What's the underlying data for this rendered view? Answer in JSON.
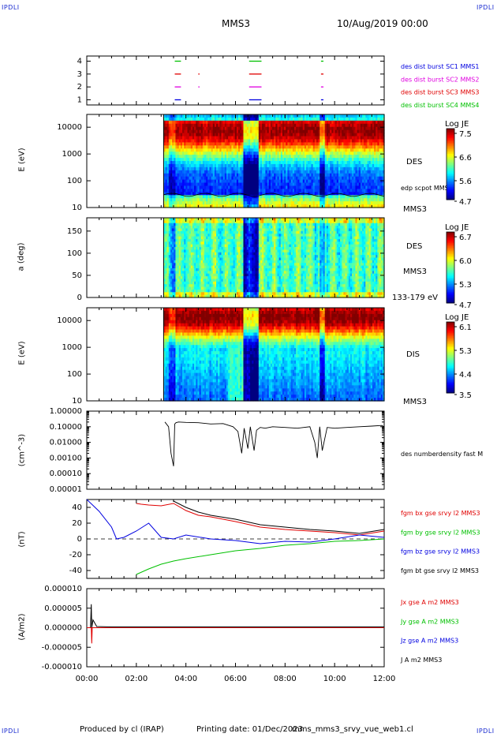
{
  "header": {
    "corner_tl": "IPDLI",
    "corner_tr": "IPDLI",
    "corner_bl": "IPDLI",
    "corner_br": "IPDLI",
    "spacecraft": "MMS3",
    "date": "10/Aug/2019 00:00"
  },
  "footer": {
    "produced_by": "Produced by cl (IRAP)",
    "printing_date": "Printing date: 01/Dec/2023",
    "filename": "mms_mms3_srvy_vue_web1.cl"
  },
  "colors": {
    "black": "#000000",
    "red": "#e00000",
    "green": "#00dd00",
    "blue": "#0000e0",
    "magenta": "#e000e0",
    "corner_blue": "#1a2bd0"
  },
  "chart_data": [
    {
      "type": "scatter",
      "panel": "burst",
      "ylim": [
        0.6,
        4.4
      ],
      "ytick_labels": [
        "1",
        "2",
        "3",
        "4"
      ],
      "legend": [
        {
          "label": "des dist burst SC1 MMS1",
          "color": "#0000e0"
        },
        {
          "label": "des dist burst SC2 MMS2",
          "color": "#e000e0"
        },
        {
          "label": "des dist burst SC3 MMS3",
          "color": "#e00000"
        },
        {
          "label": "des dist burst SC4 MMS4",
          "color": "#00c000"
        }
      ],
      "series": [
        {
          "level": 1,
          "color": "#0000e0",
          "intervals": [
            [
              3.55,
              3.8
            ],
            [
              6.55,
              7.05
            ],
            [
              9.45,
              9.55
            ]
          ]
        },
        {
          "level": 2,
          "color": "#e000e0",
          "intervals": [
            [
              3.55,
              3.8
            ],
            [
              4.5,
              4.55
            ],
            [
              6.55,
              7.05
            ],
            [
              9.45,
              9.55
            ]
          ]
        },
        {
          "level": 3,
          "color": "#e00000",
          "intervals": [
            [
              3.55,
              3.8
            ],
            [
              4.5,
              4.55
            ],
            [
              6.55,
              7.05
            ],
            [
              9.45,
              9.55
            ]
          ]
        },
        {
          "level": 4,
          "color": "#00c000",
          "intervals": [
            [
              3.55,
              3.8
            ],
            [
              6.55,
              7.05
            ],
            [
              9.45,
              9.55
            ]
          ]
        }
      ]
    },
    {
      "type": "heatmap",
      "panel": "des-energy",
      "ylabel": "E (eV)",
      "yscale": "log",
      "ylim": [
        10,
        30000
      ],
      "ytick_labels": [
        "10000",
        "1000",
        "100",
        "10"
      ],
      "right_labels": [
        "DES",
        "edp scpot MMS3",
        "MMS3"
      ],
      "colorbar": {
        "title": "Log JE",
        "ticks": [
          "7.5",
          "6.6",
          "5.6",
          "4.7"
        ],
        "range": [
          4.7,
          7.5
        ]
      },
      "data_start_hours": 3.1
    },
    {
      "type": "heatmap",
      "panel": "des-pitch",
      "ylabel": "a (deg)",
      "ylim": [
        0,
        180
      ],
      "ytick_labels": [
        "150",
        "100",
        "50",
        "0"
      ],
      "right_labels": [
        "DES",
        "MMS3",
        "133-179 eV"
      ],
      "colorbar": {
        "title": "Log JE",
        "ticks": [
          "6.7",
          "6.0",
          "5.3",
          "4.7"
        ],
        "range": [
          4.7,
          6.7
        ]
      },
      "data_start_hours": 3.1
    },
    {
      "type": "heatmap",
      "panel": "dis-energy",
      "ylabel": "E (eV)",
      "yscale": "log",
      "ylim": [
        10,
        30000
      ],
      "ytick_labels": [
        "10000",
        "1000",
        "100",
        "10"
      ],
      "right_labels": [
        "DIS",
        "MMS3"
      ],
      "colorbar": {
        "title": "Log JE",
        "ticks": [
          "6.1",
          "5.3",
          "4.4",
          "3.5"
        ],
        "range": [
          3.5,
          6.1
        ]
      },
      "data_start_hours": 3.1
    },
    {
      "type": "line",
      "panel": "density",
      "ylabel": "(cm^-3)",
      "yscale": "log",
      "ylim": [
        1e-05,
        1.0
      ],
      "ytick_labels": [
        "1.00000",
        "0.10000",
        "0.01000",
        "0.00100",
        "0.00010",
        "0.00001"
      ],
      "legend": [
        {
          "label": "des numberdensity fast M",
          "color": "#000000"
        }
      ],
      "x": [
        3.15,
        3.3,
        3.4,
        3.5,
        3.55,
        3.6,
        3.7,
        4.0,
        4.5,
        5.0,
        5.5,
        5.9,
        6.1,
        6.25,
        6.35,
        6.5,
        6.6,
        6.75,
        6.85,
        7.0,
        7.2,
        7.5,
        8.0,
        8.5,
        9.0,
        9.2,
        9.3,
        9.4,
        9.5,
        9.7,
        10.0,
        10.5,
        11.0,
        11.5,
        11.9,
        12.0
      ],
      "y": [
        0.2,
        0.1,
        0.002,
        0.0003,
        0.15,
        0.18,
        0.2,
        0.19,
        0.18,
        0.15,
        0.16,
        0.1,
        0.05,
        0.002,
        0.08,
        0.004,
        0.1,
        0.003,
        0.06,
        0.09,
        0.08,
        0.1,
        0.09,
        0.08,
        0.1,
        0.01,
        0.001,
        0.1,
        0.003,
        0.09,
        0.08,
        0.09,
        0.1,
        0.11,
        0.12,
        0.1
      ]
    },
    {
      "type": "line",
      "panel": "magnetic-field",
      "ylabel": "(nT)",
      "ylim": [
        -50,
        50
      ],
      "ytick_labels": [
        "40",
        "20",
        "0",
        "-20",
        "-40"
      ],
      "legend": [
        {
          "label": "fgm bx gse srvy l2 MMS3",
          "color": "#e00000"
        },
        {
          "label": "fgm by gse srvy l2 MMS3",
          "color": "#00c000"
        },
        {
          "label": "fgm bz gse srvy l2 MMS3",
          "color": "#0000e0"
        },
        {
          "label": "fgm bt gse srvy l2 MMS3",
          "color": "#000000"
        }
      ],
      "series": [
        {
          "name": "fgm bx gse srvy l2 MMS3",
          "color": "#e00000",
          "x": [
            2.0,
            2.2,
            2.5,
            3.0,
            3.5,
            4.0,
            4.5,
            5.0,
            6.0,
            7.0,
            8.0,
            9.0,
            10.0,
            11.0,
            12.0
          ],
          "y": [
            45,
            44,
            43,
            42,
            45,
            36,
            30,
            28,
            22,
            15,
            12,
            10,
            8,
            5,
            10
          ]
        },
        {
          "name": "fgm by gse srvy l2 MMS3",
          "color": "#00c000",
          "x": [
            2.0,
            2.5,
            3.0,
            3.5,
            4.0,
            5.0,
            6.0,
            7.0,
            8.0,
            9.0,
            10.0,
            11.0,
            12.0
          ],
          "y": [
            -45,
            -38,
            -32,
            -28,
            -25,
            -20,
            -15,
            -12,
            -8,
            -6,
            -3,
            -2,
            0
          ]
        },
        {
          "name": "fgm bz gse srvy l2 MMS3",
          "color": "#0000e0",
          "x": [
            0.0,
            0.5,
            1.0,
            1.2,
            1.5,
            2.0,
            2.5,
            3.0,
            3.5,
            4.0,
            5.0,
            6.0,
            7.0,
            8.0,
            9.0,
            10.0,
            11.0,
            12.0
          ],
          "y": [
            50,
            35,
            15,
            0,
            2,
            10,
            20,
            2,
            0,
            5,
            0,
            -2,
            -6,
            -3,
            -4,
            0,
            5,
            2
          ]
        },
        {
          "name": "fgm bt gse srvy l2 MMS3",
          "color": "#000000",
          "x": [
            3.5,
            4.0,
            4.5,
            5.0,
            6.0,
            7.0,
            8.0,
            9.0,
            10.0,
            11.0,
            12.0
          ],
          "y": [
            48,
            40,
            34,
            30,
            25,
            18,
            15,
            12,
            10,
            7,
            12
          ]
        }
      ]
    },
    {
      "type": "line",
      "panel": "current",
      "ylabel": "(A/m2)",
      "ylim": [
        -1e-05,
        1e-05
      ],
      "ytick_labels": [
        "0.000010",
        "0.000005",
        "0.000000",
        "-0.000005",
        "-0.000010"
      ],
      "xtick_labels": [
        "00:00",
        "02:00",
        "04:00",
        "06:00",
        "08:00",
        "10:00",
        "12:00"
      ],
      "xlim": [
        0,
        12
      ],
      "legend": [
        {
          "label": "Jx gse A m2 MMS3",
          "color": "#e00000"
        },
        {
          "label": "Jy gse A m2 MMS3",
          "color": "#00c000"
        },
        {
          "label": "Jz gse A m2 MMS3",
          "color": "#0000e0"
        },
        {
          "label": "J A m2 MMS3",
          "color": "#000000"
        }
      ],
      "series": [
        {
          "name": "J A m2 MMS3",
          "color": "#000000",
          "x": [
            0.0,
            0.15,
            0.18,
            0.2,
            0.25,
            0.4,
            1.0,
            12.0
          ],
          "y": [
            0.0,
            0.0,
            6e-06,
            0.0,
            2e-06,
            3e-07,
            2e-07,
            2e-07
          ]
        },
        {
          "name": "Jx gse A m2 MMS3",
          "color": "#e00000",
          "x": [
            0.0,
            0.18,
            0.2,
            0.22,
            12.0
          ],
          "y": [
            0.0,
            0.0,
            -4e-06,
            0.0,
            0.0
          ]
        }
      ]
    }
  ]
}
